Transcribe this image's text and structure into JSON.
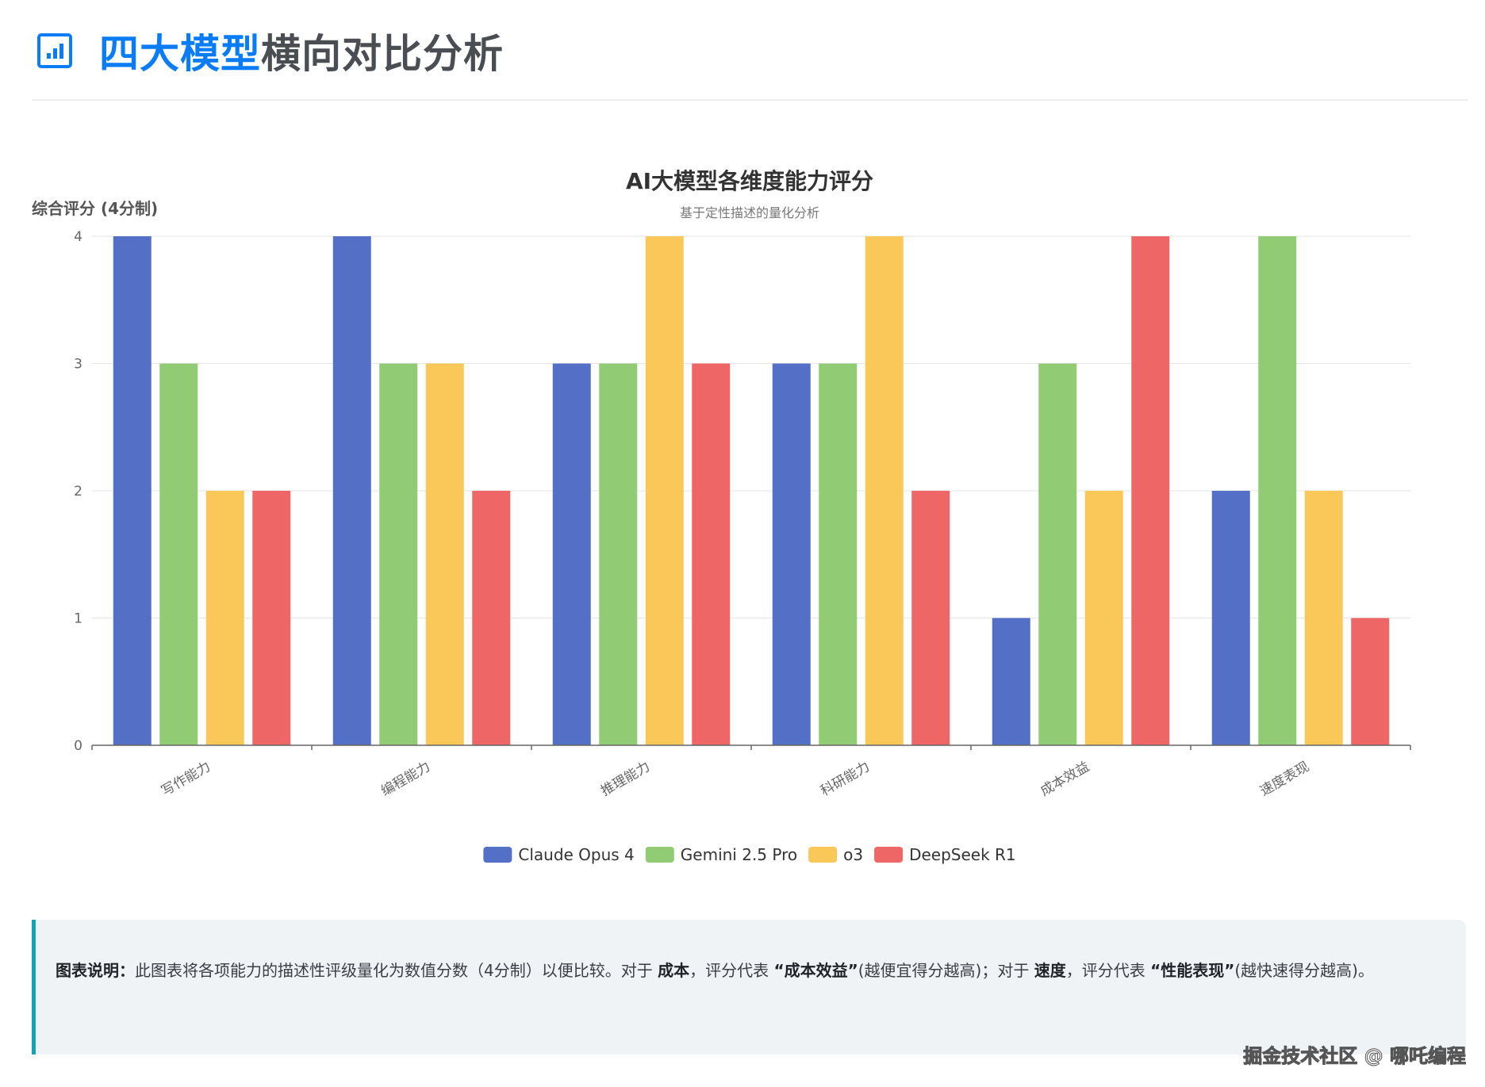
{
  "header": {
    "title_highlight": "四大模型",
    "title_rest": "横向对比分析",
    "icon": "bar-chart-icon"
  },
  "chart_data": {
    "type": "bar",
    "title": "AI大模型各维度能力评分",
    "subtitle": "基于定性描述的量化分析",
    "xlabel": "",
    "ylabel": "综合评分 (4分制)",
    "ylim": [
      0,
      4
    ],
    "yticks": [
      0,
      1,
      2,
      3,
      4
    ],
    "grid": true,
    "legend_position": "bottom",
    "categories": [
      "写作能力",
      "编程能力",
      "推理能力",
      "科研能力",
      "成本效益",
      "速度表现"
    ],
    "series": [
      {
        "name": "Claude Opus 4",
        "color": "#5470c6",
        "values": [
          4,
          4,
          3,
          3,
          1,
          2
        ]
      },
      {
        "name": "Gemini 2.5 Pro",
        "color": "#91cc75",
        "values": [
          3,
          3,
          3,
          3,
          3,
          4
        ]
      },
      {
        "name": "o3",
        "color": "#fac858",
        "values": [
          2,
          3,
          4,
          4,
          2,
          2
        ]
      },
      {
        "name": "DeepSeek R1",
        "color": "#ee6666",
        "values": [
          2,
          2,
          3,
          2,
          4,
          1
        ]
      }
    ]
  },
  "note": {
    "label": "图表说明：",
    "t1": "此图表将各项能力的描述性评级量化为数值分数（4分制）以便比较。对于 ",
    "b1": "成本",
    "t2": "，评分代表 ",
    "b2": "“成本效益”",
    "t3": "(越便宜得分越高)；对于 ",
    "b3": "速度",
    "t4": "，评分代表 ",
    "b4": "“性能表现”",
    "t5": "(越快速得分越高)。"
  },
  "watermark": "掘金技术社区 @ 哪吒编程"
}
